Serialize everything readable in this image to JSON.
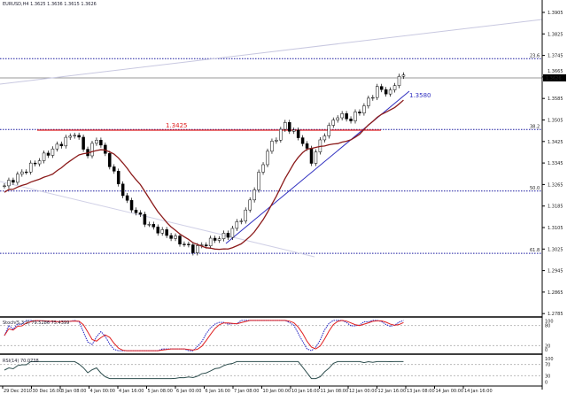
{
  "header": {
    "title": "EURUSD,H4  1.3625 1.3636 1.3615 1.3626"
  },
  "chart_data": {
    "type": "candlestick",
    "symbol": "EURUSD,H4",
    "ylim": [
      1.2715,
      1.3926
    ],
    "price_ticks": [
      "1.3905",
      "1.3825",
      "1.3745",
      "1.3665",
      "1.3585",
      "1.3505",
      "1.3425",
      "1.3345",
      "1.3265",
      "1.3185",
      "1.3105",
      "1.3025",
      "1.2945",
      "1.2865",
      "1.2785"
    ],
    "current_price": "1.3626",
    "close_keypoints": [
      [
        0,
        1.321
      ],
      [
        8,
        1.3312
      ],
      [
        16,
        1.3414
      ],
      [
        19,
        1.3329
      ],
      [
        21,
        1.3397
      ],
      [
        24,
        1.3295
      ],
      [
        28,
        1.3142
      ],
      [
        33,
        1.3056
      ],
      [
        39,
        1.3005
      ],
      [
        43,
        1.2964
      ],
      [
        48,
        1.3005
      ],
      [
        51,
        1.3022
      ],
      [
        55,
        1.3108
      ],
      [
        60,
        1.3346
      ],
      [
        64,
        1.3449
      ],
      [
        68,
        1.338
      ],
      [
        70,
        1.3305
      ],
      [
        73,
        1.3414
      ],
      [
        76,
        1.3483
      ],
      [
        79,
        1.3466
      ],
      [
        82,
        1.3517
      ],
      [
        85,
        1.3585
      ],
      [
        88,
        1.3568
      ],
      [
        90,
        1.3636
      ],
      [
        91,
        1.3626
      ]
    ],
    "annotations": {
      "resistance_label": "1.3425",
      "trendline_label": "1.3580"
    },
    "fib_levels": [
      {
        "label": "23.6",
        "price": 1.37
      },
      {
        "label": "38.2",
        "price": 1.3427
      },
      {
        "label": "50.0",
        "price": 1.319
      },
      {
        "label": "61.8",
        "price": 1.295
      }
    ],
    "stoch": {
      "label": "Stoch(5,3,3) 79.5286 75.4399",
      "ticks": [
        "100",
        "80",
        "20",
        "0"
      ]
    },
    "rsi": {
      "label": "RSI(14) 70.0738",
      "ticks": [
        "100",
        "70",
        "30",
        "0"
      ]
    },
    "x_ticks": [
      "29 Dec 2010",
      "30 Dec 16:00",
      "3 Jan 08:00",
      "4 Jan 00:00",
      "4 Jan 16:00",
      "5 Jan 08:00",
      "6 Jan 00:00",
      "6 Jan 16:00",
      "7 Jan 08:00",
      "10 Jan 00:00",
      "10 Jan 16:00",
      "11 Jan 08:00",
      "12 Jan 00:00",
      "12 Jan 16:00",
      "13 Jan 08:00",
      "14 Jan 00:00",
      "14 Jan 16:00"
    ],
    "colors": {
      "ma": "#8b1a1a",
      "resistance": "#e02020",
      "fib": "#1a1aa0",
      "trend": "#3030c0",
      "stoch_main": "#2020c0",
      "stoch_signal": "#e02020",
      "rsi": "#2f4f4f"
    }
  }
}
